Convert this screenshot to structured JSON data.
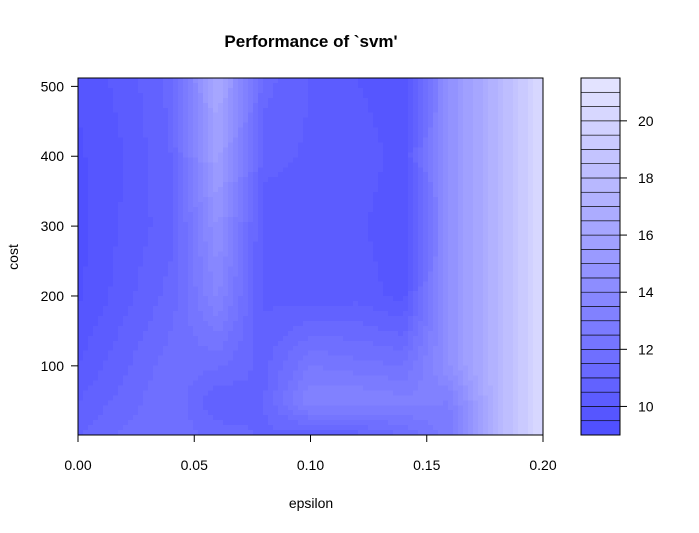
{
  "chart_data": {
    "type": "heatmap",
    "title": "Performance of `svm'",
    "xlabel": "epsilon",
    "ylabel": "cost",
    "xlim": [
      0.0,
      0.2
    ],
    "ylim": [
      1,
      512
    ],
    "x_ticks": [
      "0.00",
      "0.05",
      "0.10",
      "0.15",
      "0.20"
    ],
    "y_ticks": [
      "100",
      "200",
      "300",
      "400",
      "500"
    ],
    "x": [
      0.0,
      0.02,
      0.04,
      0.06,
      0.08,
      0.1,
      0.12,
      0.14,
      0.16,
      0.18,
      0.2
    ],
    "y": [
      1,
      50,
      100,
      200,
      300,
      400,
      512
    ],
    "z": [
      [
        11.0,
        11.6,
        11.8,
        11.3,
        10.9,
        10.7,
        10.8,
        11.5,
        12.8,
        17.5,
        20.5
      ],
      [
        10.5,
        11.2,
        12.0,
        10.5,
        11.0,
        13.5,
        13.5,
        13.2,
        13.0,
        17.5,
        20.5
      ],
      [
        10.0,
        10.9,
        11.8,
        11.6,
        10.8,
        12.5,
        12.2,
        12.0,
        14.5,
        17.5,
        20.5
      ],
      [
        9.4,
        10.3,
        11.2,
        13.6,
        10.4,
        10.2,
        10.3,
        9.8,
        14.5,
        17.5,
        20.5
      ],
      [
        9.3,
        10.1,
        10.8,
        14.6,
        10.2,
        10.1,
        10.1,
        9.6,
        14.5,
        17.5,
        20.5
      ],
      [
        9.4,
        10.0,
        11.0,
        15.8,
        10.7,
        10.4,
        10.3,
        9.8,
        14.5,
        17.5,
        20.5
      ],
      [
        9.6,
        10.2,
        11.2,
        16.6,
        11.2,
        10.5,
        10.0,
        9.6,
        14.5,
        17.5,
        20.5
      ]
    ],
    "color_levels": [
      9.0,
      9.5,
      10.0,
      10.5,
      11.0,
      11.5,
      12.0,
      12.5,
      13.0,
      13.5,
      14.0,
      14.5,
      15.0,
      15.5,
      16.0,
      16.5,
      17.0,
      17.5,
      18.0,
      18.5,
      19.0,
      19.5,
      20.0,
      20.5,
      21.0,
      21.5
    ],
    "legend_ticks": [
      "10",
      "12",
      "14",
      "16",
      "18",
      "20"
    ],
    "legend_placement": "right",
    "color_low": "#4d4dff",
    "color_high": "#e6e6ff",
    "grid": false
  }
}
